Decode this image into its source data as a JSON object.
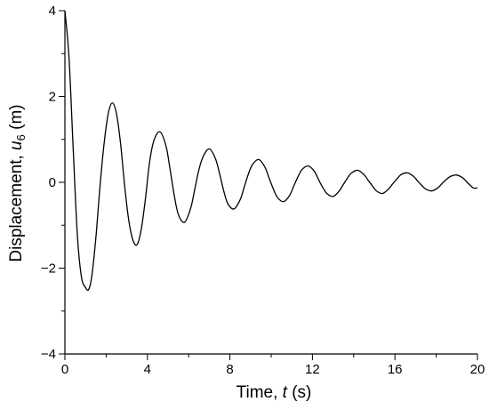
{
  "chart_data": {
    "type": "line",
    "title": "",
    "xlabel": {
      "prefix": "Time, ",
      "var": "t",
      "suffix": " (s)"
    },
    "ylabel": {
      "prefix": "Displacement, ",
      "var": "u",
      "sub": "6",
      "suffix": " (m)"
    },
    "xlim": [
      0,
      20
    ],
    "ylim": [
      -4,
      4
    ],
    "xticks": [
      0,
      4,
      8,
      12,
      16,
      20
    ],
    "yticks": [
      -4,
      -2,
      0,
      2,
      4
    ],
    "xtick_labels": [
      "0",
      "4",
      "8",
      "12",
      "16",
      "20"
    ],
    "ytick_labels": [
      "−4",
      "−2",
      "0",
      "2",
      "4"
    ],
    "grid": false,
    "line_color": "#000000",
    "series": [
      {
        "name": "",
        "x": [
          0.0,
          0.2,
          0.4,
          0.6,
          0.8,
          1.0,
          1.15,
          1.3,
          1.5,
          1.7,
          1.9,
          2.1,
          2.3,
          2.5,
          2.7,
          2.9,
          3.1,
          3.3,
          3.5,
          3.7,
          3.9,
          4.1,
          4.3,
          4.6,
          4.9,
          5.1,
          5.3,
          5.5,
          5.8,
          6.1,
          6.3,
          6.5,
          6.7,
          7.0,
          7.3,
          7.5,
          7.7,
          7.9,
          8.2,
          8.5,
          8.7,
          8.9,
          9.1,
          9.4,
          9.7,
          9.9,
          10.1,
          10.3,
          10.6,
          10.9,
          11.1,
          11.3,
          11.5,
          11.8,
          12.1,
          12.3,
          12.5,
          12.7,
          13.0,
          13.3,
          13.5,
          13.7,
          13.9,
          14.2,
          14.5,
          14.7,
          14.9,
          15.1,
          15.4,
          15.7,
          15.9,
          16.1,
          16.3,
          16.6,
          16.9,
          17.1,
          17.3,
          17.5,
          17.8,
          18.1,
          18.3,
          18.5,
          18.7,
          19.0,
          19.3,
          19.5,
          19.8,
          20.0
        ],
        "y": [
          4.0,
          2.9,
          0.8,
          -1.2,
          -2.2,
          -2.45,
          -2.5,
          -2.2,
          -1.3,
          -0.1,
          0.9,
          1.6,
          1.85,
          1.6,
          0.9,
          -0.1,
          -0.9,
          -1.35,
          -1.45,
          -1.1,
          -0.4,
          0.45,
          0.95,
          1.18,
          0.85,
          0.3,
          -0.3,
          -0.75,
          -0.93,
          -0.6,
          -0.15,
          0.3,
          0.6,
          0.78,
          0.55,
          0.2,
          -0.2,
          -0.5,
          -0.62,
          -0.4,
          -0.1,
          0.2,
          0.42,
          0.53,
          0.35,
          0.1,
          -0.15,
          -0.35,
          -0.45,
          -0.3,
          -0.08,
          0.13,
          0.3,
          0.38,
          0.25,
          0.06,
          -0.12,
          -0.26,
          -0.33,
          -0.2,
          -0.05,
          0.1,
          0.22,
          0.28,
          0.18,
          0.05,
          -0.08,
          -0.2,
          -0.26,
          -0.15,
          -0.03,
          0.08,
          0.18,
          0.22,
          0.14,
          0.03,
          -0.07,
          -0.16,
          -0.2,
          -0.12,
          -0.02,
          0.07,
          0.14,
          0.17,
          0.1,
          0.0,
          -0.13,
          -0.13
        ]
      }
    ]
  }
}
